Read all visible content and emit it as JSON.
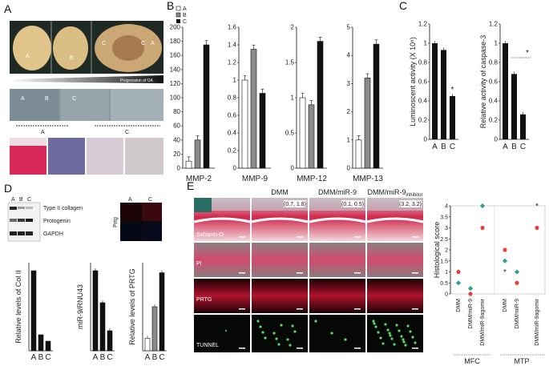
{
  "panels": {
    "A": "A",
    "B": "B",
    "C": "C",
    "D": "D",
    "E": "E"
  },
  "panelA": {
    "photo_labels": [
      "A",
      "B",
      "C",
      "C",
      "A"
    ],
    "progression": "Progression of OA",
    "micro_labels": [
      "A",
      "B",
      "C"
    ],
    "stain_labels": [
      "A",
      "C"
    ]
  },
  "panelB": {
    "legend": [
      "A",
      "B",
      "C"
    ],
    "colors": {
      "A": "#ffffff",
      "B": "#8a8a8a",
      "C": "#111111"
    },
    "charts": [
      {
        "name": "MMP-2",
        "ylim": [
          0,
          200
        ],
        "ticks": [
          "0",
          "20",
          "40",
          "60",
          "80",
          "100",
          "120",
          "140",
          "160",
          "180",
          "200"
        ],
        "values": [
          10,
          40,
          175
        ]
      },
      {
        "name": "MMP-9",
        "ylim": [
          0,
          1.6
        ],
        "ticks": [
          "0",
          "0.2",
          "0.4",
          "0.6",
          "0.8",
          "1",
          "1.2",
          "1.4",
          "1.6"
        ],
        "values": [
          1.0,
          1.35,
          0.85
        ]
      },
      {
        "name": "MMP-12",
        "ylim": [
          0,
          2
        ],
        "ticks": [
          "0",
          "0.5",
          "1",
          "1.5",
          "2"
        ],
        "values": [
          1.0,
          0.9,
          1.8
        ]
      },
      {
        "name": "MMP-13",
        "ylim": [
          0,
          5
        ],
        "ticks": [
          "0",
          "1",
          "2",
          "3",
          "4",
          "5"
        ],
        "values": [
          1.0,
          3.2,
          4.4
        ]
      }
    ]
  },
  "panelC": {
    "charts": [
      {
        "ylabel": "Luminoscent activity (X 10⁶)",
        "ylim": [
          0,
          1.2
        ],
        "ticks": [
          "0",
          "0.2",
          "0.4",
          "0.6",
          "0.8",
          "1",
          "1.2"
        ],
        "values": [
          1.0,
          0.93,
          0.45
        ],
        "star": "*"
      },
      {
        "ylabel": "Relative activity of caspase-3",
        "ylim": [
          0,
          1.2
        ],
        "ticks": [
          "0",
          "0.2",
          "0.4",
          "0.6",
          "0.8",
          "1",
          "1.2"
        ],
        "values": [
          1.0,
          0.68,
          0.26
        ],
        "star": "*"
      }
    ],
    "categories": [
      "A",
      "B",
      "C"
    ]
  },
  "panelD": {
    "lane_labels": [
      "A",
      "B",
      "C"
    ],
    "blots": [
      "Type II collagen",
      "Protogenin",
      "GAPDH"
    ],
    "prtg_image_labels": [
      "A",
      "C"
    ],
    "prtg_side": "Prtg",
    "charts": [
      {
        "ylabel": "Relative levels of Col II",
        "values": [
          1.0,
          0.2,
          0.12
        ]
      },
      {
        "ylabel": "miR-9/RNU43",
        "values": [
          1.0,
          0.6,
          0.25
        ]
      },
      {
        "ylabel": "Relative levels of PRTG",
        "values": [
          1.0,
          3.5,
          6.2
        ]
      }
    ],
    "categories": [
      "A",
      "B",
      "C"
    ]
  },
  "panelE": {
    "columns": [
      "DMM",
      "DMM/miR-9",
      "DMM/miR-9inhibitor"
    ],
    "inhibitor_base": "DMM/miR-9",
    "inhibitor_sub": "inhibitor",
    "rows": [
      "Safranin-O",
      "PI",
      "PRTG",
      "TUNNEL"
    ],
    "coords": [
      "(0.7, 1.8)",
      "(0.1, 0.5)",
      "(3.2, 3.2)"
    ]
  },
  "chart_data": {
    "type": "scatter",
    "ylabel": "Histological score",
    "ylim": [
      0,
      4
    ],
    "yticks": [
      "0",
      "0.5",
      "1",
      "1.5",
      "2",
      "2.5",
      "3",
      "3.5",
      "4"
    ],
    "categories": [
      "DMM",
      "DMM/miR-9",
      "DMM/miR-9agomir",
      "DMM",
      "DMM/miR-9",
      "DMM/miR-9agomir"
    ],
    "groups": [
      "MFC",
      "MTP"
    ],
    "series": [
      {
        "marker": "red",
        "color": "#e8413c",
        "values": [
          1,
          0,
          3,
          2,
          0.5,
          3
        ]
      },
      {
        "marker": "teal",
        "color": "#3a9c90",
        "values": [
          0.5,
          0.25,
          4,
          1.5,
          1,
          null
        ]
      },
      {
        "marker": "star",
        "color": "#333333",
        "values": [
          null,
          null,
          null,
          1,
          null,
          4
        ]
      }
    ]
  }
}
